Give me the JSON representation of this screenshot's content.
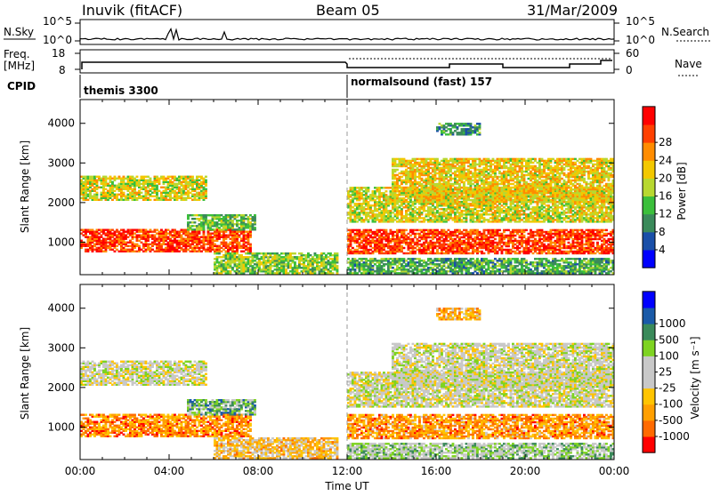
{
  "header": {
    "station": "Inuvik (fitACF)",
    "beam": "Beam 05",
    "date": "31/Mar/2009"
  },
  "panels_top": {
    "nsky_label": "N.Sky",
    "nsky_ticks": [
      "10^5",
      "10^0"
    ],
    "nsearch_label": "N.Search",
    "freq_label_1": "Freq.",
    "freq_label_2": "[MHz]",
    "freq_ticks": [
      "18",
      "8"
    ],
    "nave_label": "Nave",
    "nave_ticks": [
      "60",
      "0"
    ],
    "cpid_label": "CPID",
    "cpid_segments": [
      "themis 3300",
      "normalsound (fast) 157"
    ]
  },
  "colors": {
    "power_scale": [
      "#0000ff",
      "#1a4fa8",
      "#3a8a5a",
      "#3bbf3b",
      "#b8d830",
      "#f3c800",
      "#ff8c00",
      "#ff4000",
      "#ff0000"
    ],
    "velocity_scale": [
      "#ff0000",
      "#ff6a00",
      "#ff9f00",
      "#ffc400",
      "#c8c8c8",
      "#c8c8c8",
      "#7ed321",
      "#3a8a5a",
      "#1a5aa8",
      "#0000ff"
    ]
  },
  "chart_data": [
    {
      "type": "heatmap",
      "title": "",
      "xlabel": "",
      "ylabel": "Slant Range [km]",
      "colorbar_label": "Power [dB]",
      "colorbar_ticks": [
        "4",
        "8",
        "12",
        "16",
        "20",
        "24",
        "28"
      ],
      "xlim_hours": [
        0,
        24
      ],
      "ylim_km": [
        180,
        4600
      ],
      "y_ticks": [
        "1000",
        "2000",
        "3000",
        "4000"
      ],
      "echo_regions": [
        {
          "t0": 0.0,
          "t1": 5.6,
          "r0": 2050,
          "r1": 2650,
          "level": 0.55
        },
        {
          "t0": 0.0,
          "t1": 7.6,
          "r0": 750,
          "r1": 1300,
          "level": 0.85
        },
        {
          "t0": 4.8,
          "t1": 7.8,
          "r0": 1300,
          "r1": 1700,
          "level": 0.4
        },
        {
          "t0": 6.0,
          "t1": 11.5,
          "r0": 200,
          "r1": 700,
          "level": 0.45
        },
        {
          "t0": 12.0,
          "t1": 24.0,
          "r0": 700,
          "r1": 1300,
          "level": 0.85
        },
        {
          "t0": 12.0,
          "t1": 24.0,
          "r0": 1500,
          "r1": 2400,
          "level": 0.55
        },
        {
          "t0": 14.0,
          "t1": 24.0,
          "r0": 2000,
          "r1": 3100,
          "level": 0.6
        },
        {
          "t0": 16.0,
          "t1": 18.0,
          "r0": 3700,
          "r1": 4000,
          "level": 0.3
        },
        {
          "t0": 12.0,
          "t1": 24.0,
          "r0": 200,
          "r1": 600,
          "level": 0.35
        }
      ]
    },
    {
      "type": "heatmap",
      "title": "",
      "xlabel": "Time UT",
      "ylabel": "Slant Range [km]",
      "colorbar_label": "Velocity [m s⁻¹]",
      "colorbar_ticks": [
        "-1000",
        "-500",
        "-100",
        "-25",
        "25",
        "100",
        "500",
        "1000"
      ],
      "xlim_hours": [
        0,
        24
      ],
      "ylim_km": [
        180,
        4600
      ],
      "y_ticks": [
        "1000",
        "2000",
        "3000",
        "4000"
      ],
      "x_ticks": [
        "00:00",
        "04:00",
        "08:00",
        "12:00",
        "16:00",
        "20:00",
        "00:00"
      ],
      "echo_regions": [
        {
          "t0": 0.0,
          "t1": 5.6,
          "r0": 2050,
          "r1": 2650,
          "level": 0.5
        },
        {
          "t0": 0.0,
          "t1": 7.6,
          "r0": 750,
          "r1": 1300,
          "level": 0.22
        },
        {
          "t0": 4.8,
          "t1": 7.8,
          "r0": 1300,
          "r1": 1700,
          "level": 0.68
        },
        {
          "t0": 6.0,
          "t1": 11.5,
          "r0": 200,
          "r1": 700,
          "level": 0.35
        },
        {
          "t0": 12.0,
          "t1": 24.0,
          "r0": 700,
          "r1": 1300,
          "level": 0.25
        },
        {
          "t0": 12.0,
          "t1": 24.0,
          "r0": 1500,
          "r1": 2400,
          "level": 0.5
        },
        {
          "t0": 14.0,
          "t1": 24.0,
          "r0": 2000,
          "r1": 3100,
          "level": 0.5
        },
        {
          "t0": 16.0,
          "t1": 18.0,
          "r0": 3700,
          "r1": 4000,
          "level": 0.3
        },
        {
          "t0": 12.0,
          "t1": 24.0,
          "r0": 200,
          "r1": 600,
          "level": 0.6
        }
      ]
    }
  ]
}
